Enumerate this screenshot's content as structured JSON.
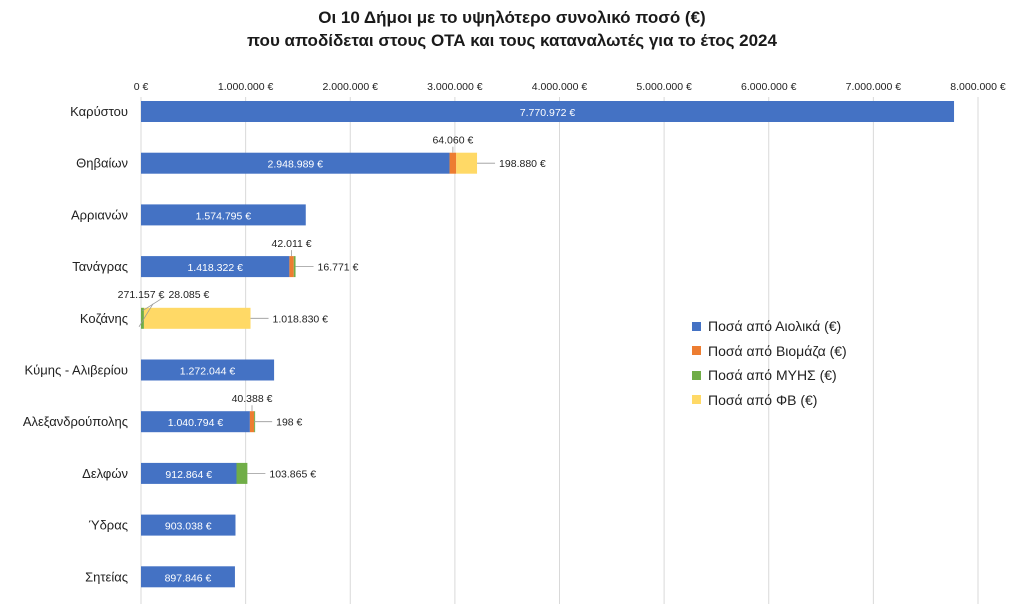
{
  "title_line1": "Οι 10 Δήμοι με το υψηλότερο συνολικό ποσό (€)",
  "title_line2": "που αποδίδεται στους ΟΤΑ και τους καταναλωτές για το έτος 2024",
  "chart_data": {
    "type": "bar",
    "orientation": "horizontal",
    "stacked": true,
    "xlim": [
      0,
      8000000
    ],
    "x_ticks": [
      "0 €",
      "1.000.000 €",
      "2.000.000 €",
      "3.000.000 €",
      "4.000.000 €",
      "5.000.000 €",
      "6.000.000 €",
      "7.000.000 €",
      "8.000.000 €"
    ],
    "x_tick_values": [
      0,
      1000000,
      2000000,
      3000000,
      4000000,
      5000000,
      6000000,
      7000000,
      8000000
    ],
    "x_axis_position": "top",
    "legend_position": "right",
    "grid": true,
    "categories": [
      "Καρύστου",
      "Θηβαίων",
      "Αρριανών",
      "Τανάγρας",
      "Κοζάνης",
      "Κύμης - Αλιβερίου",
      "Αλεξανδρούπολης",
      "Δελφών",
      "Ύδρας",
      "Σητείας"
    ],
    "series": [
      {
        "name": "Ποσά από Αιολικά (€)",
        "color": "#4472C4",
        "values": [
          7770972,
          2948989,
          1574795,
          1418322,
          0,
          1272044,
          1040794,
          912864,
          903038,
          897846
        ],
        "labels": [
          "7.770.972 €",
          "2.948.989 €",
          "1.574.795 €",
          "1.418.322 €",
          "",
          "1.272.044 €",
          "1.040.794 €",
          "912.864 €",
          "903.038 €",
          "897.846 €"
        ]
      },
      {
        "name": "Ποσά από Βιομάζα (€)",
        "color": "#ED7D31",
        "values": [
          0,
          64060,
          0,
          42011,
          0,
          0,
          40388,
          0,
          0,
          0
        ],
        "labels": [
          "",
          "64.060 €",
          "",
          "42.011 €",
          "",
          "",
          "40.388 €",
          "",
          "",
          ""
        ]
      },
      {
        "name": "Ποσά από ΜΥΗΣ (€)",
        "color": "#70AD47",
        "values": [
          0,
          0,
          0,
          16771,
          28085,
          0,
          198,
          103865,
          0,
          0
        ],
        "labels": [
          "",
          "",
          "",
          "16.771 €",
          "28.085 €",
          "",
          "198 €",
          "103.865 €",
          "",
          ""
        ]
      },
      {
        "name": "Ποσά από ΦΒ (€)",
        "color": "#FFD966",
        "values": [
          0,
          198880,
          0,
          0,
          1018830,
          0,
          0,
          0,
          0,
          0
        ],
        "labels": [
          "",
          "198.880 €",
          "",
          "",
          "1.018.830 €",
          "",
          "",
          "",
          "",
          ""
        ]
      }
    ],
    "extra_labels": [
      {
        "category": "Κοζάνης",
        "text": "271.157 €"
      }
    ]
  }
}
